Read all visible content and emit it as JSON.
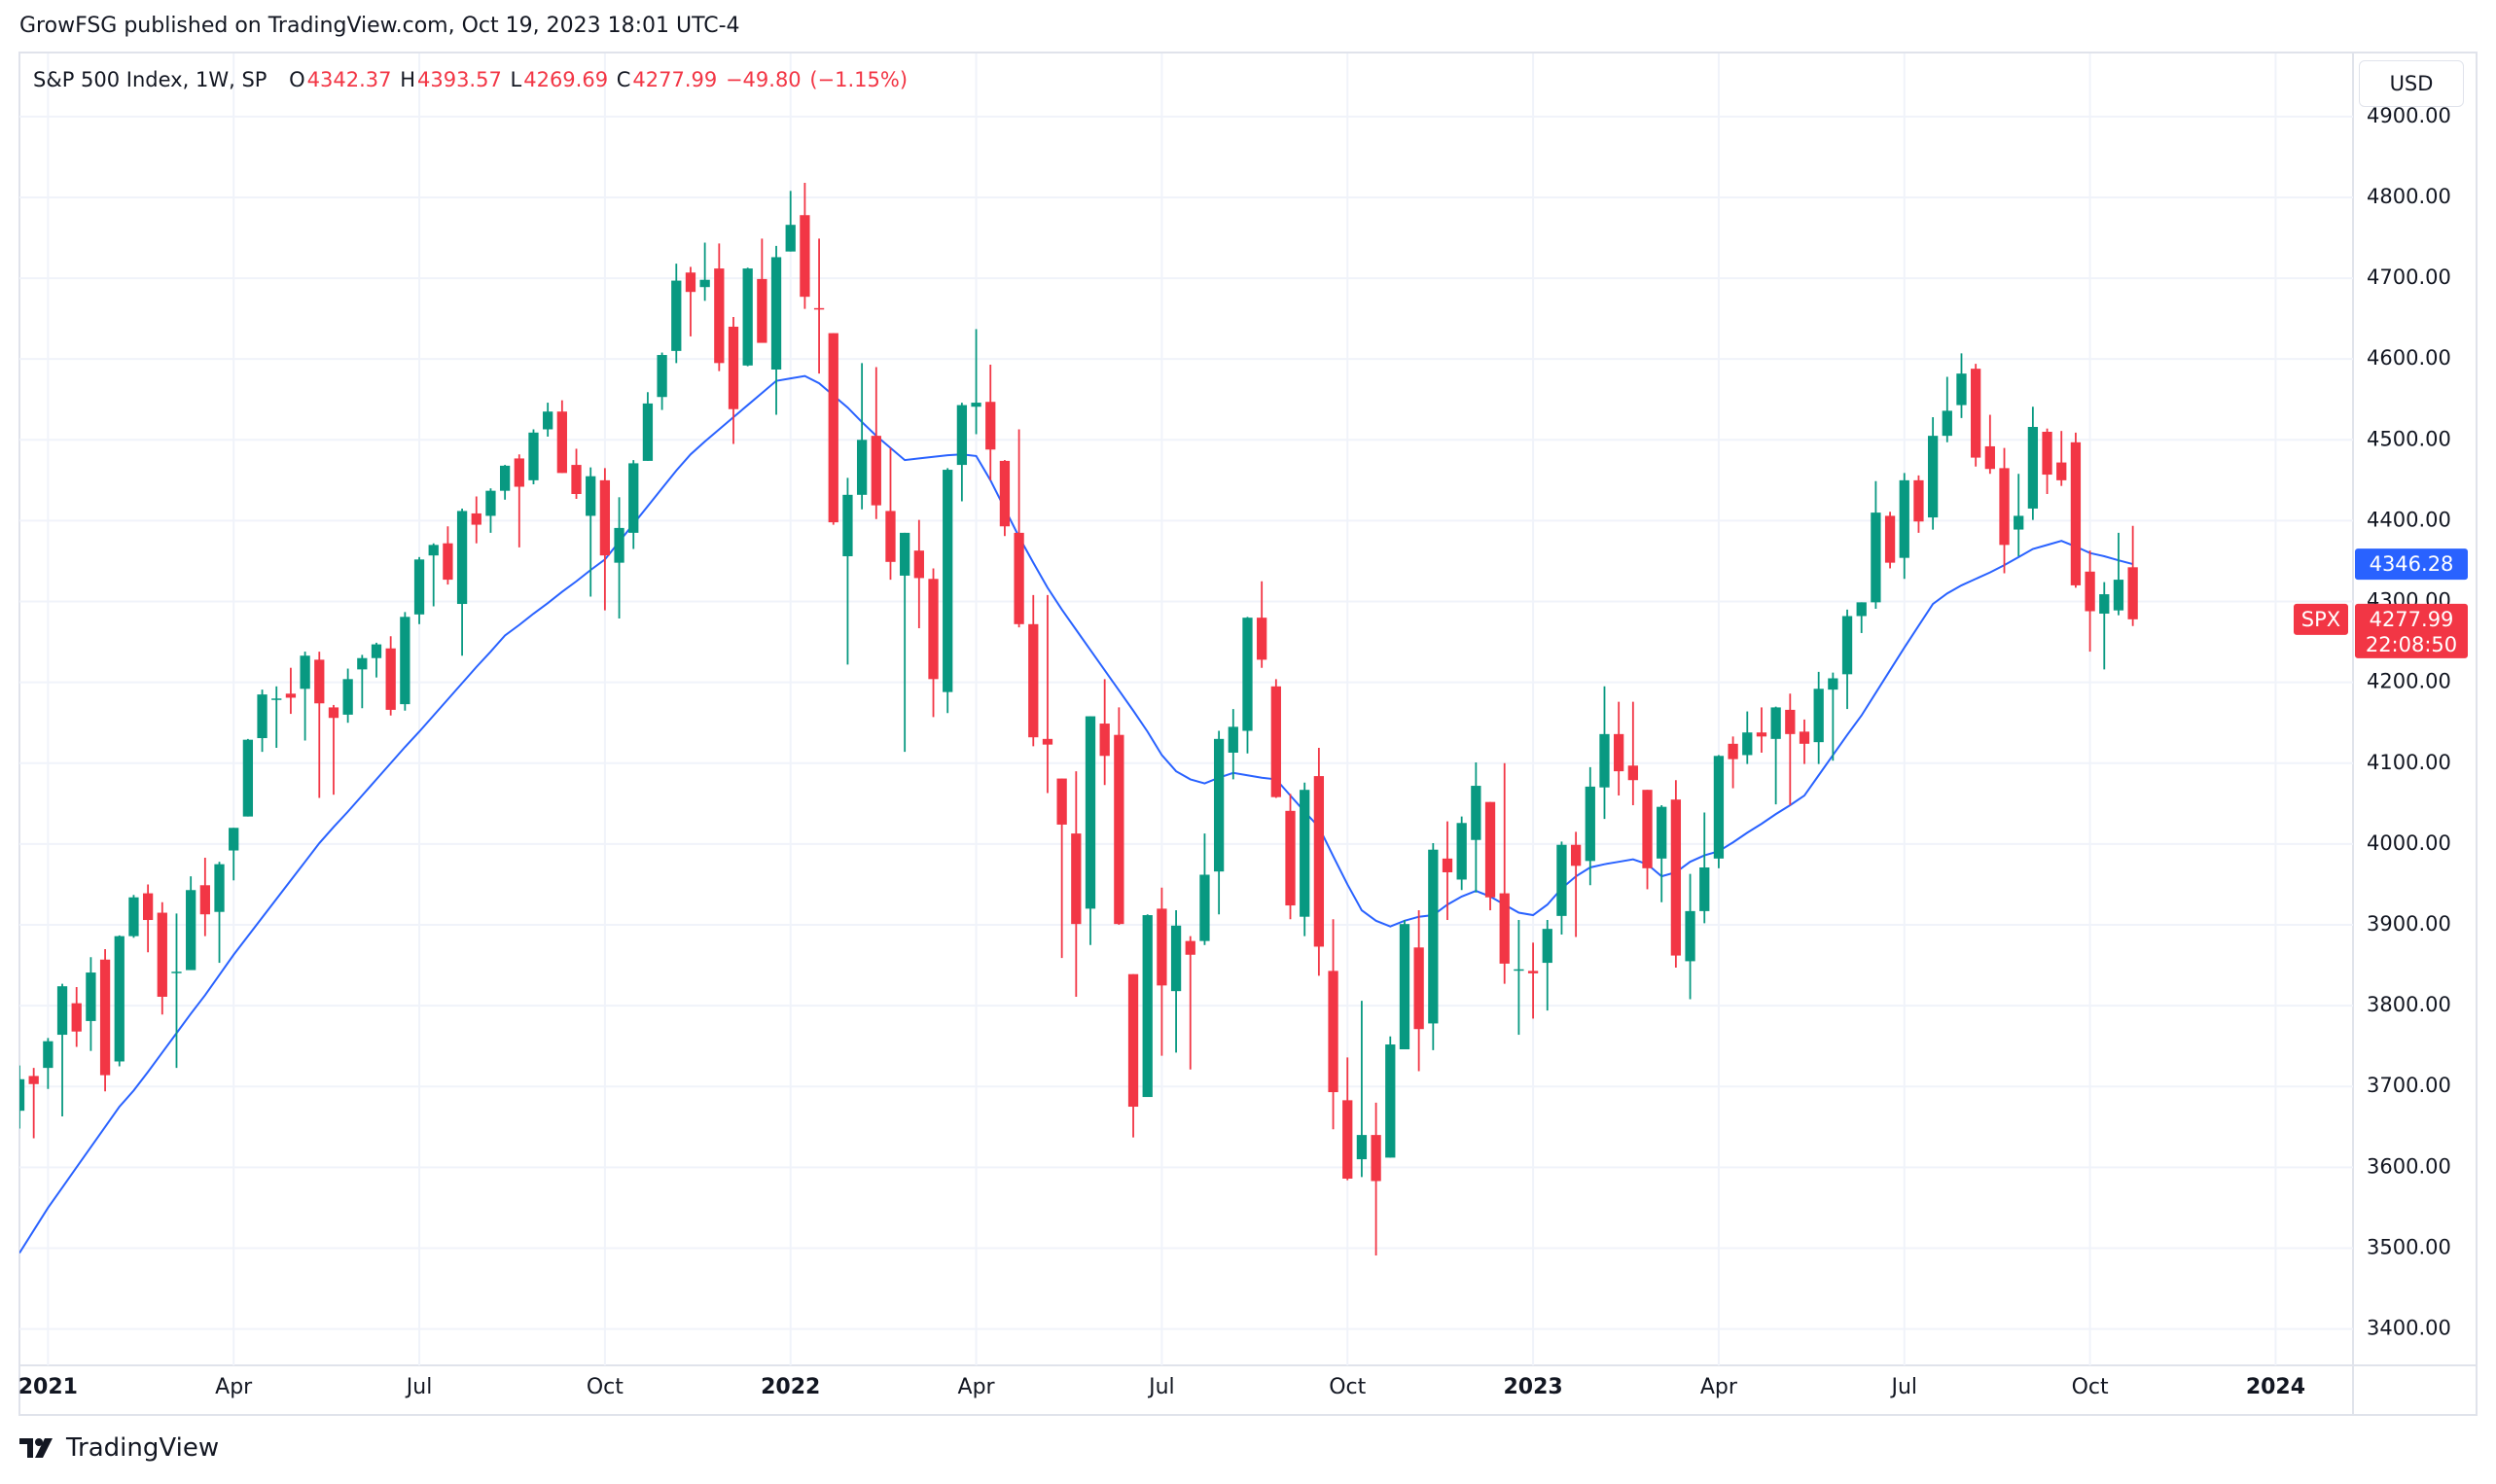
{
  "chart_data": {
    "type": "candlestick",
    "attribution": "GrowFSG published on TradingView.com, Oct 19, 2023 18:01 UTC-4",
    "symbol": "S&P 500 Index, 1W, SP",
    "legend": {
      "open_label": "O",
      "open": 4342.37,
      "high_label": "H",
      "high": 4393.57,
      "low_label": "L",
      "low": 4269.69,
      "close_label": "C",
      "close": 4277.99,
      "change": {
        "value": -49.8,
        "label": "−49.80"
      },
      "change_pct": {
        "value": -1.15,
        "label": "(−1.15%)"
      }
    },
    "currency": "USD",
    "ticker_tag": "SPX",
    "countdown": "22:08:50",
    "brand": "TradingView",
    "up_color": "#089981",
    "down_color": "#f23645",
    "grid": true,
    "ylim": [
      3355,
      4978
    ],
    "yticks": [
      {
        "value": 3400,
        "label": "3400.00"
      },
      {
        "value": 3500,
        "label": "3500.00"
      },
      {
        "value": 3600,
        "label": "3600.00"
      },
      {
        "value": 3700,
        "label": "3700.00"
      },
      {
        "value": 3800,
        "label": "3800.00"
      },
      {
        "value": 3900,
        "label": "3900.00"
      },
      {
        "value": 4000,
        "label": "4000.00"
      },
      {
        "value": 4100,
        "label": "4100.00"
      },
      {
        "value": 4200,
        "label": "4200.00"
      },
      {
        "value": 4300,
        "label": "4300.00"
      },
      {
        "value": 4400,
        "label": "4400.00"
      },
      {
        "value": 4500,
        "label": "4500.00"
      },
      {
        "value": 4600,
        "label": "4600.00"
      },
      {
        "value": 4700,
        "label": "4700.00"
      },
      {
        "value": 4800,
        "label": "4800.00"
      },
      {
        "value": 4900,
        "label": "4900.00"
      }
    ],
    "categories": [
      null,
      null,
      "2021",
      null,
      null,
      null,
      null,
      null,
      null,
      null,
      null,
      null,
      null,
      null,
      null,
      "Apr",
      null,
      null,
      null,
      null,
      null,
      null,
      null,
      null,
      null,
      null,
      null,
      null,
      "Jul",
      null,
      null,
      null,
      null,
      null,
      null,
      null,
      null,
      null,
      null,
      null,
      null,
      "Oct",
      null,
      null,
      null,
      null,
      null,
      null,
      null,
      null,
      null,
      null,
      null,
      null,
      "2022",
      null,
      null,
      null,
      null,
      null,
      null,
      null,
      null,
      null,
      null,
      null,
      null,
      "Apr",
      null,
      null,
      null,
      null,
      null,
      null,
      null,
      null,
      null,
      null,
      null,
      null,
      "Jul",
      null,
      null,
      null,
      null,
      null,
      null,
      null,
      null,
      null,
      null,
      null,
      null,
      "Oct",
      null,
      null,
      null,
      null,
      null,
      null,
      null,
      null,
      null,
      null,
      null,
      null,
      "2023",
      null,
      null,
      null,
      null,
      null,
      null,
      null,
      null,
      null,
      null,
      null,
      null,
      "Apr",
      null,
      null,
      null,
      null,
      null,
      null,
      null,
      null,
      null,
      null,
      null,
      null,
      "Jul",
      null,
      null,
      null,
      null,
      null,
      null,
      null,
      null,
      null,
      null,
      null,
      null,
      "Oct",
      null,
      null,
      null,
      null,
      null,
      null,
      null,
      null,
      null,
      null,
      null,
      null,
      "2024",
      null,
      null,
      null,
      null,
      null
    ],
    "ohlc": {
      "open": [
        3670,
        3713,
        3723,
        3764,
        3803,
        3781,
        3857,
        3731,
        3886,
        3939,
        3915,
        3842,
        3844,
        3949,
        3916,
        3992,
        4034,
        4131,
        4179,
        4186,
        4192,
        4228,
        4169,
        4160,
        4216,
        4230,
        4242,
        4173,
        4284,
        4357,
        4372,
        4297,
        4409,
        4406,
        4437,
        4477,
        4450,
        4513,
        4535,
        4469,
        4406,
        4450,
        4348,
        4385,
        4474,
        4553,
        4610,
        4707,
        4689,
        4712,
        4640,
        4592,
        4699,
        4587,
        4733,
        4778,
        4663,
        4632,
        4356,
        4432,
        4505,
        4412,
        4332,
        4363,
        4328,
        4188,
        4469,
        4541,
        4547,
        4474,
        4385,
        4272,
        4130,
        4081,
        4013,
        3920,
        4149,
        4135,
        3839,
        3687,
        3920,
        3818,
        3880,
        3880,
        3966,
        4113,
        4140,
        4280,
        4195,
        4041,
        3910,
        4084,
        3843,
        3683,
        3610,
        3640,
        3612,
        3746,
        3872,
        3778,
        3982,
        3956,
        4005,
        4052,
        3939,
        3844,
        3843,
        3853,
        3911,
        3999,
        3979,
        4070,
        4136,
        4097,
        4067,
        3982,
        4055,
        3855,
        3917,
        3982,
        4124,
        4110,
        4138,
        4130,
        4166,
        4139,
        4126,
        4191,
        4210,
        4282,
        4299,
        4406,
        4354,
        4450,
        4404,
        4505,
        4543,
        4588,
        4492,
        4465,
        4389,
        4415,
        4510,
        4472,
        4497,
        4337,
        4285,
        4289,
        4342.37,
        null,
        null,
        null,
        null,
        null,
        null,
        null,
        null,
        null,
        null,
        null,
        null,
        null,
        null,
        null
      ],
      "high": [
        3726,
        3723,
        3760,
        3827,
        3823,
        3860,
        3870,
        3887,
        3937,
        3950,
        3928,
        3914,
        3960,
        3983,
        3978,
        4020,
        4130,
        4191,
        4195,
        4218,
        4238,
        4238,
        4172,
        4217,
        4234,
        4249,
        4257,
        4287,
        4355,
        4372,
        4393,
        4415,
        4430,
        4440,
        4469,
        4482,
        4513,
        4546,
        4549,
        4489,
        4466,
        4465,
        4429,
        4475,
        4559,
        4608,
        4718,
        4714,
        4744,
        4743,
        4652,
        4713,
        4749,
        4740,
        4808,
        4818,
        4749,
        4632,
        4453,
        4595,
        4590,
        4490,
        4385,
        4401,
        4341,
        4465,
        4546,
        4637,
        4593,
        4475,
        4513,
        4308,
        4308,
        4081,
        4090,
        4158,
        4204,
        4169,
        3839,
        3913,
        3946,
        3918,
        3886,
        4013,
        4140,
        4167,
        4281,
        4325,
        4204,
        4062,
        4076,
        4119,
        3907,
        3736,
        3806,
        3680,
        3762,
        3906,
        3918,
        4001,
        4028,
        4034,
        4101,
        4052,
        4100,
        3906,
        3878,
        3906,
        4003,
        4015,
        4095,
        4195,
        4176,
        4176,
        4067,
        4048,
        4079,
        3963,
        4039,
        4110,
        4133,
        4164,
        4169,
        4170,
        4186,
        4154,
        4213,
        4212,
        4290,
        4299,
        4449,
        4411,
        4459,
        4456,
        4528,
        4578,
        4607,
        4594,
        4531,
        4490,
        4458,
        4541,
        4514,
        4511,
        4509,
        4363,
        4324,
        4385,
        4393.57,
        null,
        null,
        null,
        null,
        null,
        null,
        null,
        null,
        null,
        null,
        null,
        null,
        null,
        null,
        null
      ],
      "low": [
        3648,
        3636,
        3697,
        3663,
        3749,
        3744,
        3694,
        3725,
        3884,
        3866,
        3789,
        3723,
        3844,
        3886,
        3853,
        3955,
        4034,
        4114,
        4119,
        4161,
        4128,
        4057,
        4061,
        4150,
        4168,
        4206,
        4159,
        4165,
        4272,
        4294,
        4321,
        4233,
        4372,
        4385,
        4426,
        4367,
        4445,
        4504,
        4459,
        4427,
        4306,
        4289,
        4279,
        4365,
        4474,
        4537,
        4595,
        4628,
        4672,
        4585,
        4495,
        4591,
        4620,
        4531,
        4733,
        4662,
        4582,
        4395,
        4222,
        4414,
        4402,
        4327,
        4114,
        4267,
        4157,
        4162,
        4424,
        4507,
        4450,
        4381,
        4268,
        4121,
        4063,
        3859,
        3811,
        3875,
        4073,
        3900,
        3637,
        3687,
        3738,
        3742,
        3721,
        3875,
        3913,
        4080,
        4112,
        4218,
        4057,
        3907,
        3886,
        3837,
        3647,
        3584,
        3588,
        3491,
        3612,
        3746,
        3719,
        3745,
        3906,
        3943,
        3940,
        3918,
        3827,
        3764,
        3784,
        3794,
        3888,
        3885,
        3949,
        4031,
        4060,
        4048,
        3944,
        3928,
        3847,
        3808,
        3902,
        3970,
        4069,
        4099,
        4113,
        4049,
        4048,
        4099,
        4099,
        4103,
        4167,
        4261,
        4291,
        4341,
        4328,
        4385,
        4389,
        4497,
        4527,
        4467,
        4458,
        4335,
        4356,
        4401,
        4433,
        4443,
        4317,
        4238,
        4216,
        4283,
        4269.69,
        null,
        null,
        null,
        null,
        null,
        null,
        null,
        null,
        null,
        null,
        null,
        null,
        null,
        null,
        null
      ],
      "close": [
        3709,
        3703,
        3756,
        3824,
        3768,
        3841,
        3714,
        3886,
        3934,
        3906,
        3811,
        3842,
        3943,
        3913,
        3975,
        4020,
        4129,
        4185,
        4180,
        4181,
        4233,
        4174,
        4156,
        4204,
        4230,
        4247,
        4166,
        4281,
        4352,
        4370,
        4327,
        4412,
        4395,
        4437,
        4468,
        4442,
        4509,
        4535,
        4459,
        4433,
        4455,
        4357,
        4391,
        4471,
        4545,
        4605,
        4697,
        4683,
        4698,
        4595,
        4538,
        4712,
        4620,
        4726,
        4766,
        4677,
        4662,
        4398,
        4432,
        4500,
        4419,
        4349,
        4385,
        4329,
        4204,
        4463,
        4543,
        4546,
        4488,
        4393,
        4272,
        4132,
        4123,
        4024,
        3901,
        4158,
        4109,
        3901,
        3675,
        3912,
        3825,
        3899,
        3863,
        3962,
        4130,
        4145,
        4280,
        4228,
        4058,
        3924,
        4067,
        3873,
        3693,
        3586,
        3640,
        3583,
        3752,
        3901,
        3771,
        3993,
        3965,
        4026,
        4072,
        3934,
        3852,
        3845,
        3840,
        3895,
        3999,
        3973,
        4071,
        4136,
        4090,
        4079,
        3970,
        4046,
        3862,
        3917,
        3971,
        4109,
        4105,
        4138,
        4133,
        4169,
        4136,
        4124,
        4192,
        4205,
        4282,
        4299,
        4410,
        4348,
        4450,
        4399,
        4505,
        4536,
        4582,
        4478,
        4464,
        4370,
        4406,
        4516,
        4457,
        4450,
        4320,
        4288,
        4309,
        4327,
        4277.99,
        null,
        null,
        null,
        null,
        null,
        null,
        null,
        null,
        null,
        null,
        null,
        null,
        null,
        null,
        null
      ]
    },
    "ma": {
      "color": "#2962ff",
      "values": [
        3494,
        3522,
        3550,
        3575,
        3600,
        3625,
        3650,
        3675,
        3695,
        3718,
        3742,
        3766,
        3790,
        3813,
        3838,
        3863,
        3886,
        3909,
        3932,
        3955,
        3978,
        4001,
        4021,
        4040,
        4060,
        4080,
        4100,
        4120,
        4139,
        4159,
        4179,
        4199,
        4219,
        4238,
        4258,
        4271,
        4285,
        4298,
        4312,
        4325,
        4339,
        4352,
        4374,
        4396,
        4418,
        4440,
        4462,
        4482,
        4498,
        4513,
        4528,
        4543,
        4558,
        4573,
        4576,
        4579,
        4570,
        4555,
        4540,
        4522,
        4505,
        4490,
        4475,
        4477,
        4479,
        4481,
        4482,
        4480,
        4450,
        4415,
        4380,
        4348,
        4317,
        4290,
        4265,
        4240,
        4215,
        4190,
        4165,
        4139,
        4110,
        4090,
        4080,
        4075,
        4082,
        4088,
        4085,
        4082,
        4080,
        4060,
        4040,
        4021,
        3985,
        3950,
        3918,
        3905,
        3898,
        3905,
        3910,
        3912,
        3925,
        3935,
        3942,
        3935,
        3925,
        3915,
        3912,
        3925,
        3945,
        3960,
        3971,
        3975,
        3978,
        3981,
        3975,
        3960,
        3965,
        3978,
        3986,
        3991,
        4002,
        4014,
        4025,
        4037,
        4048,
        4060,
        4085,
        4110,
        4135,
        4159,
        4187,
        4215,
        4243,
        4270,
        4297,
        4310,
        4320,
        4328,
        4336,
        4345,
        4355,
        4365,
        4370,
        4375,
        4368,
        4360,
        4356,
        4351,
        4346.28,
        null,
        null,
        null,
        null,
        null,
        null,
        null,
        null,
        null,
        null,
        null,
        null,
        null,
        null,
        null
      ]
    }
  }
}
